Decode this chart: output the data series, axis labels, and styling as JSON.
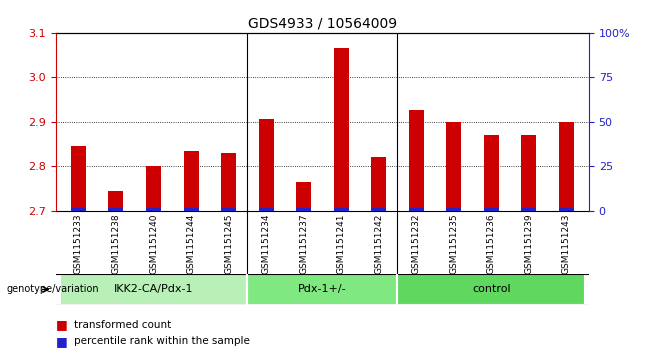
{
  "title": "GDS4933 / 10564009",
  "samples": [
    "GSM1151233",
    "GSM1151238",
    "GSM1151240",
    "GSM1151244",
    "GSM1151245",
    "GSM1151234",
    "GSM1151237",
    "GSM1151241",
    "GSM1151242",
    "GSM1151232",
    "GSM1151235",
    "GSM1151236",
    "GSM1151239",
    "GSM1151243"
  ],
  "red_values": [
    2.845,
    2.745,
    2.8,
    2.835,
    2.83,
    2.905,
    2.765,
    3.065,
    2.82,
    2.925,
    2.9,
    2.87,
    2.87,
    2.9
  ],
  "blue_heights": [
    0.006,
    0.006,
    0.006,
    0.006,
    0.006,
    0.006,
    0.006,
    0.006,
    0.006,
    0.006,
    0.006,
    0.006,
    0.006,
    0.006
  ],
  "ymin": 2.7,
  "ymax": 3.1,
  "y_ticks": [
    2.7,
    2.8,
    2.9,
    3.0,
    3.1
  ],
  "y2_ticks_pct": [
    0,
    25,
    50,
    75,
    100
  ],
  "y2_labels": [
    "0",
    "25",
    "50",
    "75",
    "100%"
  ],
  "groups": [
    {
      "label": "IKK2-CA/Pdx-1",
      "start": 0,
      "end": 5
    },
    {
      "label": "Pdx-1+/-",
      "start": 5,
      "end": 9
    },
    {
      "label": "control",
      "start": 9,
      "end": 14
    }
  ],
  "group_colors": [
    "#b8f0b8",
    "#b8f0b8",
    "#70e070"
  ],
  "bar_width": 0.4,
  "red_color": "#cc0000",
  "blue_color": "#2222cc",
  "genotype_label": "genotype/variation",
  "legend_red": "transformed count",
  "legend_blue": "percentile rank within the sample",
  "left_tick_color": "#cc0000",
  "right_tick_color": "#2222cc",
  "grid_yticks": [
    2.8,
    2.9,
    3.0
  ],
  "xtick_bg_color": "#d0d0d0"
}
